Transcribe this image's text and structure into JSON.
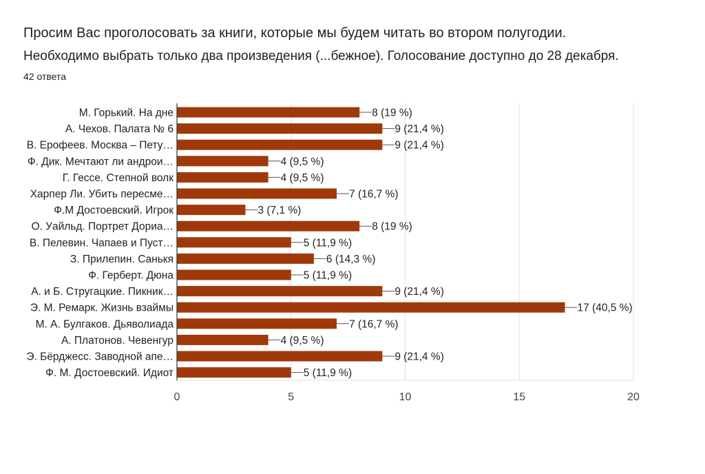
{
  "header": {
    "title": "Просим Вас проголосовать за книги, которые мы будем читать во втором полугодии.",
    "subtitle": "Необходимо выбрать только два произведения (...бежное). Голосование доступно до 28 декабря.",
    "responses": "42 ответа"
  },
  "chart_data": {
    "type": "bar",
    "orientation": "horizontal",
    "bar_color": "#a0390a",
    "categories": [
      "М. Горький. На дне",
      "А. Чехов. Палата № 6",
      "В. Ерофеев. Москва – Пету…",
      "Ф. Дик. Мечтают ли андрои…",
      "Г. Гессе. Степной волк",
      "Харпер Ли. Убить пересме…",
      "Ф.М Достоевский. Игрок",
      "О. Уайльд. Портрет Дориа…",
      "В. Пелевин. Чапаев и Пуст…",
      "З. Прилепин. Санькя",
      "Ф. Герберт. Дюна",
      "А. и Б. Стругацкие. Пикник…",
      "Э. М. Ремарк. Жизнь взаймы",
      "М. А. Булгаков. Дьяволиада",
      "А. Платонов. Чевенгур",
      "Э. Бёрджесс. Заводной апе…",
      "Ф. М. Достоевский. Идиот"
    ],
    "values": [
      8,
      9,
      9,
      4,
      4,
      7,
      3,
      8,
      5,
      6,
      5,
      9,
      17,
      7,
      4,
      9,
      5
    ],
    "data_labels": [
      "8 (19 %)",
      "9 (21,4 %)",
      "9 (21,4 %)",
      "4 (9,5 %)",
      "4 (9,5 %)",
      "7 (16,7 %)",
      "3 (7,1 %)",
      "8 (19 %)",
      "5 (11,9 %)",
      "6 (14,3 %)",
      "5 (11,9 %)",
      "9 (21,4 %)",
      "17 (40,5 %)",
      "7 (16,7 %)",
      "4 (9,5 %)",
      "9 (21,4 %)",
      "5 (11,9 %)"
    ],
    "xlim": [
      0,
      20
    ],
    "xticks": [
      "0",
      "5",
      "10",
      "15",
      "20"
    ],
    "grid": true
  }
}
